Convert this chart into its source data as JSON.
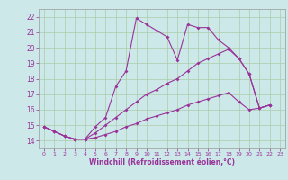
{
  "xlabel": "Windchill (Refroidissement éolien,°C)",
  "background_color": "#cce8e8",
  "grid_color": "#aaccaa",
  "line_color": "#993399",
  "spine_color": "#999999",
  "xlim": [
    -0.5,
    23.5
  ],
  "ylim": [
    13.5,
    22.5
  ],
  "yticks": [
    14,
    15,
    16,
    17,
    18,
    19,
    20,
    21,
    22
  ],
  "xticks": [
    0,
    1,
    2,
    3,
    4,
    5,
    6,
    7,
    8,
    9,
    10,
    11,
    12,
    13,
    14,
    15,
    16,
    17,
    18,
    19,
    20,
    21,
    22,
    23
  ],
  "series1_x": [
    0,
    1,
    2,
    3,
    4,
    5,
    6,
    7,
    8,
    9,
    10,
    11,
    12,
    13,
    14,
    15,
    16,
    17,
    18,
    19,
    20,
    21,
    22
  ],
  "series1_y": [
    14.9,
    14.6,
    14.3,
    14.1,
    14.1,
    14.9,
    15.5,
    17.5,
    18.5,
    21.9,
    21.5,
    21.1,
    20.7,
    19.2,
    21.5,
    21.3,
    21.3,
    20.5,
    20.0,
    19.3,
    18.3,
    16.1,
    16.3
  ],
  "series2_x": [
    0,
    1,
    2,
    3,
    4,
    5,
    6,
    7,
    8,
    9,
    10,
    11,
    12,
    13,
    14,
    15,
    16,
    17,
    18,
    19,
    20,
    21,
    22
  ],
  "series2_y": [
    14.9,
    14.6,
    14.3,
    14.1,
    14.1,
    14.5,
    15.0,
    15.5,
    16.0,
    16.5,
    17.0,
    17.3,
    17.7,
    18.0,
    18.5,
    19.0,
    19.3,
    19.6,
    19.9,
    19.3,
    18.3,
    16.1,
    16.3
  ],
  "series3_x": [
    0,
    1,
    2,
    3,
    4,
    5,
    6,
    7,
    8,
    9,
    10,
    11,
    12,
    13,
    14,
    15,
    16,
    17,
    18,
    19,
    20,
    21,
    22
  ],
  "series3_y": [
    14.9,
    14.6,
    14.3,
    14.1,
    14.1,
    14.2,
    14.4,
    14.6,
    14.9,
    15.1,
    15.4,
    15.6,
    15.8,
    16.0,
    16.3,
    16.5,
    16.7,
    16.9,
    17.1,
    16.5,
    16.0,
    16.1,
    16.3
  ],
  "tick_fontsize": 5.5,
  "xlabel_fontsize": 5.5,
  "marker_size": 2.0,
  "line_width": 0.8
}
